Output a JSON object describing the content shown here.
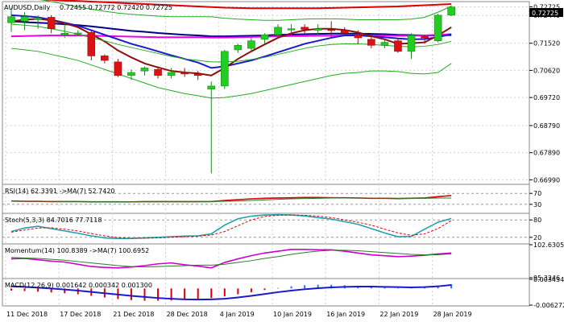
{
  "header": {
    "symbol": "AUDUSD,Daily",
    "ohlc": "0.72455 0.72772 0.72420 0.72725",
    "last_price": "0.72725"
  },
  "colors": {
    "background": "#ffffff",
    "grid": "#d0d0d0",
    "bull_candle": "#22cc22",
    "bear_candle": "#dd1111",
    "price_badge": "#000000",
    "ma_blue": "#1a1acc",
    "ma_magenta": "#ee00ee",
    "ma_darkred": "#8b1010",
    "ma_red": "#dd0000",
    "ma_navy": "#000080",
    "bollinger": "#22aa22",
    "rsi_line": "#dd0000",
    "rsi_signal": "#2b7a2b",
    "stoch_main": "#20a0b0",
    "stoch_signal": "#dd0000",
    "momentum_main": "#cc00cc",
    "momentum_signal": "#2b7a2b",
    "macd_hist": "#1e78ff",
    "macd_hist_neg": "#dd0000",
    "macd_signal": "#1a1acc"
  },
  "x_axis": {
    "labels": [
      "11 Dec 2018",
      "17 Dec 2018",
      "21 Dec 2018",
      "28 Dec 2018",
      "4 Jan 2019",
      "10 Jan 2019",
      "16 Jan 2019",
      "22 Jan 2019",
      "28 Jan 2019"
    ]
  },
  "chart_data": [
    {
      "type": "candlestick",
      "title": "AUDUSD,Daily",
      "price_axis_ticks": [
        "0.72725",
        "0.72440",
        "0.71520",
        "0.70620",
        "0.69720",
        "0.68790",
        "0.67890",
        "0.66990"
      ],
      "ylim": [
        0.6684,
        0.729
      ],
      "candles": [
        {
          "o": 0.722,
          "h": 0.727,
          "l": 0.719,
          "c": 0.724
        },
        {
          "o": 0.7225,
          "h": 0.7255,
          "l": 0.7195,
          "c": 0.724
        },
        {
          "o": 0.723,
          "h": 0.7245,
          "l": 0.72,
          "c": 0.7235
        },
        {
          "o": 0.7238,
          "h": 0.7245,
          "l": 0.7185,
          "c": 0.72
        },
        {
          "o": 0.718,
          "h": 0.722,
          "l": 0.717,
          "c": 0.7185
        },
        {
          "o": 0.7185,
          "h": 0.7195,
          "l": 0.7175,
          "c": 0.7186
        },
        {
          "o": 0.7188,
          "h": 0.7192,
          "l": 0.7095,
          "c": 0.711
        },
        {
          "o": 0.711,
          "h": 0.7115,
          "l": 0.7085,
          "c": 0.7095
        },
        {
          "o": 0.709,
          "h": 0.71,
          "l": 0.704,
          "c": 0.7045
        },
        {
          "o": 0.7045,
          "h": 0.7065,
          "l": 0.703,
          "c": 0.7055
        },
        {
          "o": 0.706,
          "h": 0.7075,
          "l": 0.7045,
          "c": 0.707
        },
        {
          "o": 0.7065,
          "h": 0.7075,
          "l": 0.7035,
          "c": 0.7045
        },
        {
          "o": 0.7045,
          "h": 0.707,
          "l": 0.7035,
          "c": 0.7055
        },
        {
          "o": 0.7055,
          "h": 0.707,
          "l": 0.704,
          "c": 0.705
        },
        {
          "o": 0.705,
          "h": 0.706,
          "l": 0.703,
          "c": 0.7045
        },
        {
          "o": 0.7,
          "h": 0.7025,
          "l": 0.672,
          "c": 0.701
        },
        {
          "o": 0.701,
          "h": 0.713,
          "l": 0.7,
          "c": 0.7125
        },
        {
          "o": 0.713,
          "h": 0.715,
          "l": 0.712,
          "c": 0.7145
        },
        {
          "o": 0.7135,
          "h": 0.717,
          "l": 0.7125,
          "c": 0.716
        },
        {
          "o": 0.7165,
          "h": 0.7185,
          "l": 0.715,
          "c": 0.718
        },
        {
          "o": 0.718,
          "h": 0.7215,
          "l": 0.7175,
          "c": 0.7205
        },
        {
          "o": 0.72,
          "h": 0.7215,
          "l": 0.718,
          "c": 0.72
        },
        {
          "o": 0.7205,
          "h": 0.7215,
          "l": 0.7185,
          "c": 0.7198
        },
        {
          "o": 0.7195,
          "h": 0.7215,
          "l": 0.718,
          "c": 0.72
        },
        {
          "o": 0.7198,
          "h": 0.7225,
          "l": 0.717,
          "c": 0.7195
        },
        {
          "o": 0.7195,
          "h": 0.7205,
          "l": 0.7175,
          "c": 0.7185
        },
        {
          "o": 0.718,
          "h": 0.7195,
          "l": 0.715,
          "c": 0.717
        },
        {
          "o": 0.7165,
          "h": 0.718,
          "l": 0.7135,
          "c": 0.7145
        },
        {
          "o": 0.7145,
          "h": 0.7165,
          "l": 0.7135,
          "c": 0.7155
        },
        {
          "o": 0.716,
          "h": 0.717,
          "l": 0.712,
          "c": 0.7125
        },
        {
          "o": 0.7125,
          "h": 0.7185,
          "l": 0.71,
          "c": 0.7178
        },
        {
          "o": 0.7175,
          "h": 0.718,
          "l": 0.715,
          "c": 0.717
        },
        {
          "o": 0.716,
          "h": 0.725,
          "l": 0.7155,
          "c": 0.7245
        },
        {
          "o": 0.7245,
          "h": 0.7277,
          "l": 0.7242,
          "c": 0.7272
        }
      ],
      "overlays": [
        {
          "color_key": "ma_red",
          "values": [
            0.73,
            0.73,
            0.7298,
            0.7296,
            0.7294,
            0.7292,
            0.729,
            0.7288,
            0.7286,
            0.7284,
            0.7282,
            0.728,
            0.7278,
            0.7276,
            0.7274,
            0.7272,
            0.727,
            0.7269,
            0.7268,
            0.7268,
            0.7268,
            0.7268,
            0.7268,
            0.7268,
            0.7269,
            0.727,
            0.7271,
            0.7272,
            0.7273,
            0.7274,
            0.7276,
            0.7278,
            0.728,
            0.7282
          ]
        },
        {
          "color_key": "ma_navy",
          "values": [
            0.7225,
            0.7222,
            0.722,
            0.7218,
            0.7215,
            0.7212,
            0.7208,
            0.7203,
            0.7198,
            0.7193,
            0.719,
            0.7186,
            0.7183,
            0.718,
            0.7178,
            0.7175,
            0.7175,
            0.7176,
            0.7177,
            0.7178,
            0.718,
            0.7181,
            0.7182,
            0.7183,
            0.7184,
            0.7184,
            0.7184,
            0.7183,
            0.7182,
            0.718,
            0.7179,
            0.7178,
            0.7178,
            0.7179
          ]
        },
        {
          "color_key": "ma_magenta",
          "values": [
            0.7175,
            0.7176,
            0.7177,
            0.7178,
            0.7178,
            0.7178,
            0.7177,
            0.7176,
            0.7175,
            0.7174,
            0.7173,
            0.7172,
            0.7172,
            0.7172,
            0.7172,
            0.7171,
            0.7171,
            0.7172,
            0.7173,
            0.7174,
            0.7175,
            0.7176,
            0.7176,
            0.7177,
            0.7177,
            0.7178,
            0.7178,
            0.7178,
            0.7178,
            0.7177,
            0.7177,
            0.7178,
            0.718,
            0.7182
          ]
        },
        {
          "color_key": "ma_blue",
          "values": [
            0.7245,
            0.7242,
            0.7238,
            0.723,
            0.722,
            0.721,
            0.7195,
            0.718,
            0.7165,
            0.715,
            0.7138,
            0.7125,
            0.7112,
            0.71,
            0.7088,
            0.707,
            0.7075,
            0.7085,
            0.7095,
            0.7108,
            0.7122,
            0.7136,
            0.715,
            0.716,
            0.717,
            0.7178,
            0.7178,
            0.7175,
            0.7172,
            0.7168,
            0.7165,
            0.7166,
            0.7172,
            0.7182
          ]
        },
        {
          "color_key": "ma_darkred",
          "values": [
            0.7225,
            0.723,
            0.7233,
            0.7228,
            0.7218,
            0.7205,
            0.7182,
            0.7158,
            0.7128,
            0.7105,
            0.7085,
            0.7072,
            0.706,
            0.7055,
            0.7052,
            0.7045,
            0.707,
            0.71,
            0.7125,
            0.7148,
            0.717,
            0.7185,
            0.7195,
            0.72,
            0.72,
            0.7196,
            0.7188,
            0.7175,
            0.7165,
            0.715,
            0.7152,
            0.7155,
            0.7178,
            0.7205
          ]
        },
        {
          "color_key": "bollinger",
          "values": [
            0.7305,
            0.7303,
            0.7298,
            0.729,
            0.7282,
            0.7272,
            0.7265,
            0.7258,
            0.7252,
            0.7248,
            0.7245,
            0.7242,
            0.724,
            0.724,
            0.724,
            0.724,
            0.7235,
            0.7232,
            0.723,
            0.7228,
            0.7228,
            0.723,
            0.7232,
            0.7233,
            0.7233,
            0.7232,
            0.723,
            0.723,
            0.723,
            0.723,
            0.7232,
            0.7238,
            0.7255,
            0.7275
          ]
        },
        {
          "color_key": "bollinger",
          "values": [
            0.7215,
            0.7212,
            0.7208,
            0.72,
            0.7192,
            0.7182,
            0.717,
            0.716,
            0.7148,
            0.7138,
            0.7128,
            0.7118,
            0.7108,
            0.71,
            0.7095,
            0.709,
            0.709,
            0.7092,
            0.7098,
            0.7105,
            0.7115,
            0.7125,
            0.7135,
            0.7143,
            0.7148,
            0.715,
            0.715,
            0.7148,
            0.7145,
            0.7142,
            0.714,
            0.7142,
            0.7148,
            0.7158
          ]
        },
        {
          "color_key": "bollinger",
          "values": [
            0.7135,
            0.713,
            0.7125,
            0.7115,
            0.7105,
            0.7095,
            0.708,
            0.7065,
            0.705,
            0.7035,
            0.702,
            0.7005,
            0.6995,
            0.6985,
            0.6978,
            0.697,
            0.6972,
            0.6978,
            0.6985,
            0.6995,
            0.7005,
            0.7015,
            0.7025,
            0.7035,
            0.7045,
            0.7052,
            0.7055,
            0.706,
            0.706,
            0.7058,
            0.7052,
            0.705,
            0.7055,
            0.7085
          ]
        }
      ]
    },
    {
      "type": "line",
      "title": "RSI(14) 62.3391 ->MA(7) 52.7420",
      "levels": [
        "70",
        "30"
      ],
      "ylim": [
        0,
        100
      ],
      "series": [
        {
          "color_key": "rsi_line",
          "values": [
            42,
            41,
            41,
            40,
            40,
            40,
            39,
            39,
            39,
            39,
            40,
            40,
            40,
            40,
            40,
            40,
            44,
            47,
            50,
            52,
            53,
            54,
            55,
            55,
            54,
            54,
            53,
            52,
            52,
            51,
            52,
            53,
            58,
            62
          ]
        },
        {
          "color_key": "rsi_signal",
          "values": [
            41,
            41,
            41,
            41,
            40,
            40,
            40,
            40,
            40,
            39,
            39,
            39,
            39,
            39,
            39,
            40,
            41,
            42,
            44,
            46,
            48,
            50,
            51,
            52,
            53,
            53,
            53,
            53,
            53,
            52,
            52,
            52,
            53,
            53
          ]
        }
      ]
    },
    {
      "type": "line",
      "title": "Stoch(5,3,3) 84.7016 77.7118",
      "levels": [
        "80",
        "20"
      ],
      "ylim": [
        0,
        100
      ],
      "series": [
        {
          "color_key": "stoch_main",
          "values": [
            40,
            52,
            58,
            50,
            42,
            34,
            25,
            18,
            16,
            16,
            18,
            20,
            22,
            24,
            25,
            32,
            62,
            84,
            93,
            97,
            98,
            97,
            94,
            88,
            83,
            74,
            65,
            50,
            35,
            22,
            23,
            48,
            72,
            85
          ]
        },
        {
          "color_key": "stoch_signal",
          "values": [
            38,
            45,
            52,
            53,
            48,
            42,
            33,
            25,
            19,
            17,
            17,
            18,
            20,
            22,
            24,
            28,
            40,
            60,
            80,
            92,
            96,
            97,
            96,
            93,
            88,
            80,
            72,
            62,
            48,
            35,
            27,
            32,
            50,
            78
          ]
        }
      ]
    },
    {
      "type": "line",
      "title": "Momentum(14) 100.8389 ->MA(7) 100.6952",
      "axis_ticks": [
        "102.6305",
        "95.3246"
      ],
      "ylim": [
        95.3246,
        102.6305
      ],
      "series": [
        {
          "color_key": "momentum_main",
          "values": [
            99.5,
            99.6,
            99.3,
            99.0,
            98.8,
            98.3,
            97.8,
            97.6,
            97.5,
            97.7,
            98.0,
            98.4,
            98.6,
            98.2,
            97.9,
            97.5,
            98.7,
            99.5,
            100.2,
            100.8,
            101.2,
            101.6,
            101.6,
            101.5,
            101.5,
            101.2,
            100.8,
            100.4,
            100.2,
            100.0,
            100.1,
            100.3,
            100.6,
            100.8
          ]
        },
        {
          "color_key": "momentum_signal",
          "values": [
            99.8,
            99.7,
            99.6,
            99.4,
            99.2,
            98.9,
            98.6,
            98.3,
            98.0,
            97.8,
            97.7,
            97.8,
            97.9,
            98.0,
            98.1,
            98.1,
            98.3,
            98.7,
            99.1,
            99.6,
            100.0,
            100.5,
            100.9,
            101.2,
            101.4,
            101.4,
            101.3,
            101.1,
            100.9,
            100.7,
            100.5,
            100.4,
            100.4,
            100.6
          ]
        }
      ]
    },
    {
      "type": "bar",
      "title": "MACD(12,26,9) 0.001642 0.000342 0.001300",
      "axis_ticks": [
        "0.003434",
        "-0.006272"
      ],
      "ylim": [
        -0.006272,
        0.003434
      ],
      "histogram": [
        -0.0008,
        -0.001,
        -0.0012,
        -0.0015,
        -0.0018,
        -0.0022,
        -0.0028,
        -0.0034,
        -0.004,
        -0.0044,
        -0.0046,
        -0.0046,
        -0.0045,
        -0.0043,
        -0.004,
        -0.0036,
        -0.003,
        -0.0022,
        -0.0014,
        -0.0006,
        0.0002,
        0.0008,
        0.0012,
        0.0014,
        0.0014,
        0.0012,
        0.001,
        0.0007,
        0.0004,
        0.0002,
        0.0003,
        0.0006,
        0.0011,
        0.0016
      ],
      "signal": [
        0.0008,
        0.0006,
        0.0003,
        0.0,
        -0.0004,
        -0.0008,
        -0.0013,
        -0.0018,
        -0.0023,
        -0.0028,
        -0.0032,
        -0.0036,
        -0.0039,
        -0.0041,
        -0.0042,
        -0.0041,
        -0.0039,
        -0.0034,
        -0.0028,
        -0.0021,
        -0.0014,
        -0.0008,
        -0.0003,
        0.0001,
        0.0004,
        0.0006,
        0.0007,
        0.0007,
        0.0006,
        0.0005,
        0.0004,
        0.0005,
        0.0008,
        0.0013
      ]
    }
  ]
}
